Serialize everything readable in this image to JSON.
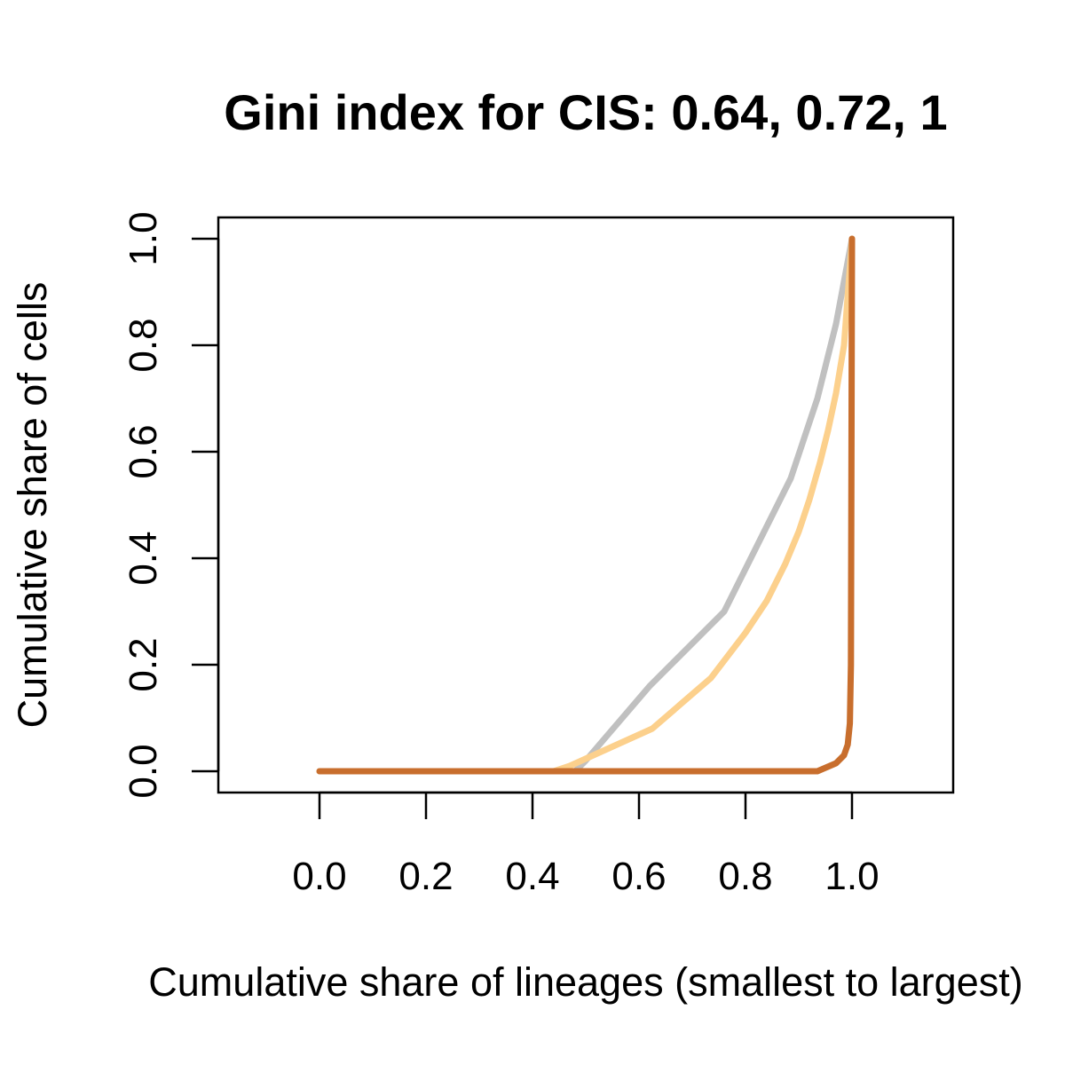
{
  "chart_data": {
    "type": "line",
    "title": "Gini index for CIS: 0.64, 0.72, 1",
    "xlabel": "Cumulative share of lineages (smallest to largest)",
    "ylabel": "Cumulative share of cells",
    "xlim": [
      -0.19,
      1.19
    ],
    "ylim": [
      -0.04,
      1.04
    ],
    "x_ticks": [
      0.0,
      0.2,
      0.4,
      0.6,
      0.8,
      1.0
    ],
    "x_tick_labels": [
      "0.0",
      "0.2",
      "0.4",
      "0.6",
      "0.8",
      "1.0"
    ],
    "y_ticks": [
      0.0,
      0.2,
      0.4,
      0.6,
      0.8,
      1.0
    ],
    "y_tick_labels": [
      "0.0",
      "0.2",
      "0.4",
      "0.6",
      "0.8",
      "1.0"
    ],
    "grid": false,
    "series": [
      {
        "color": "#c0c0c0",
        "x": [
          0.0,
          0.48,
          0.5,
          0.62,
          0.76,
          0.885,
          0.935,
          0.97,
          1.0
        ],
        "y": [
          0.0,
          0.0,
          0.02,
          0.16,
          0.3,
          0.55,
          0.7,
          0.84,
          1.0
        ]
      },
      {
        "color": "#fcd08c",
        "x": [
          0.0,
          0.44,
          0.47,
          0.625,
          0.735,
          0.8,
          0.84,
          0.875,
          0.9,
          0.92,
          0.94,
          0.955,
          0.97,
          0.985,
          1.0
        ],
        "y": [
          0.0,
          0.0,
          0.01,
          0.08,
          0.175,
          0.26,
          0.32,
          0.39,
          0.45,
          0.51,
          0.58,
          0.64,
          0.71,
          0.8,
          1.0
        ]
      },
      {
        "color": "#c86e2d",
        "x": [
          0.0,
          0.935,
          0.97,
          0.985,
          0.992,
          0.996,
          0.998,
          1.0
        ],
        "y": [
          0.0,
          0.0,
          0.015,
          0.03,
          0.05,
          0.09,
          0.2,
          1.0
        ]
      }
    ]
  }
}
